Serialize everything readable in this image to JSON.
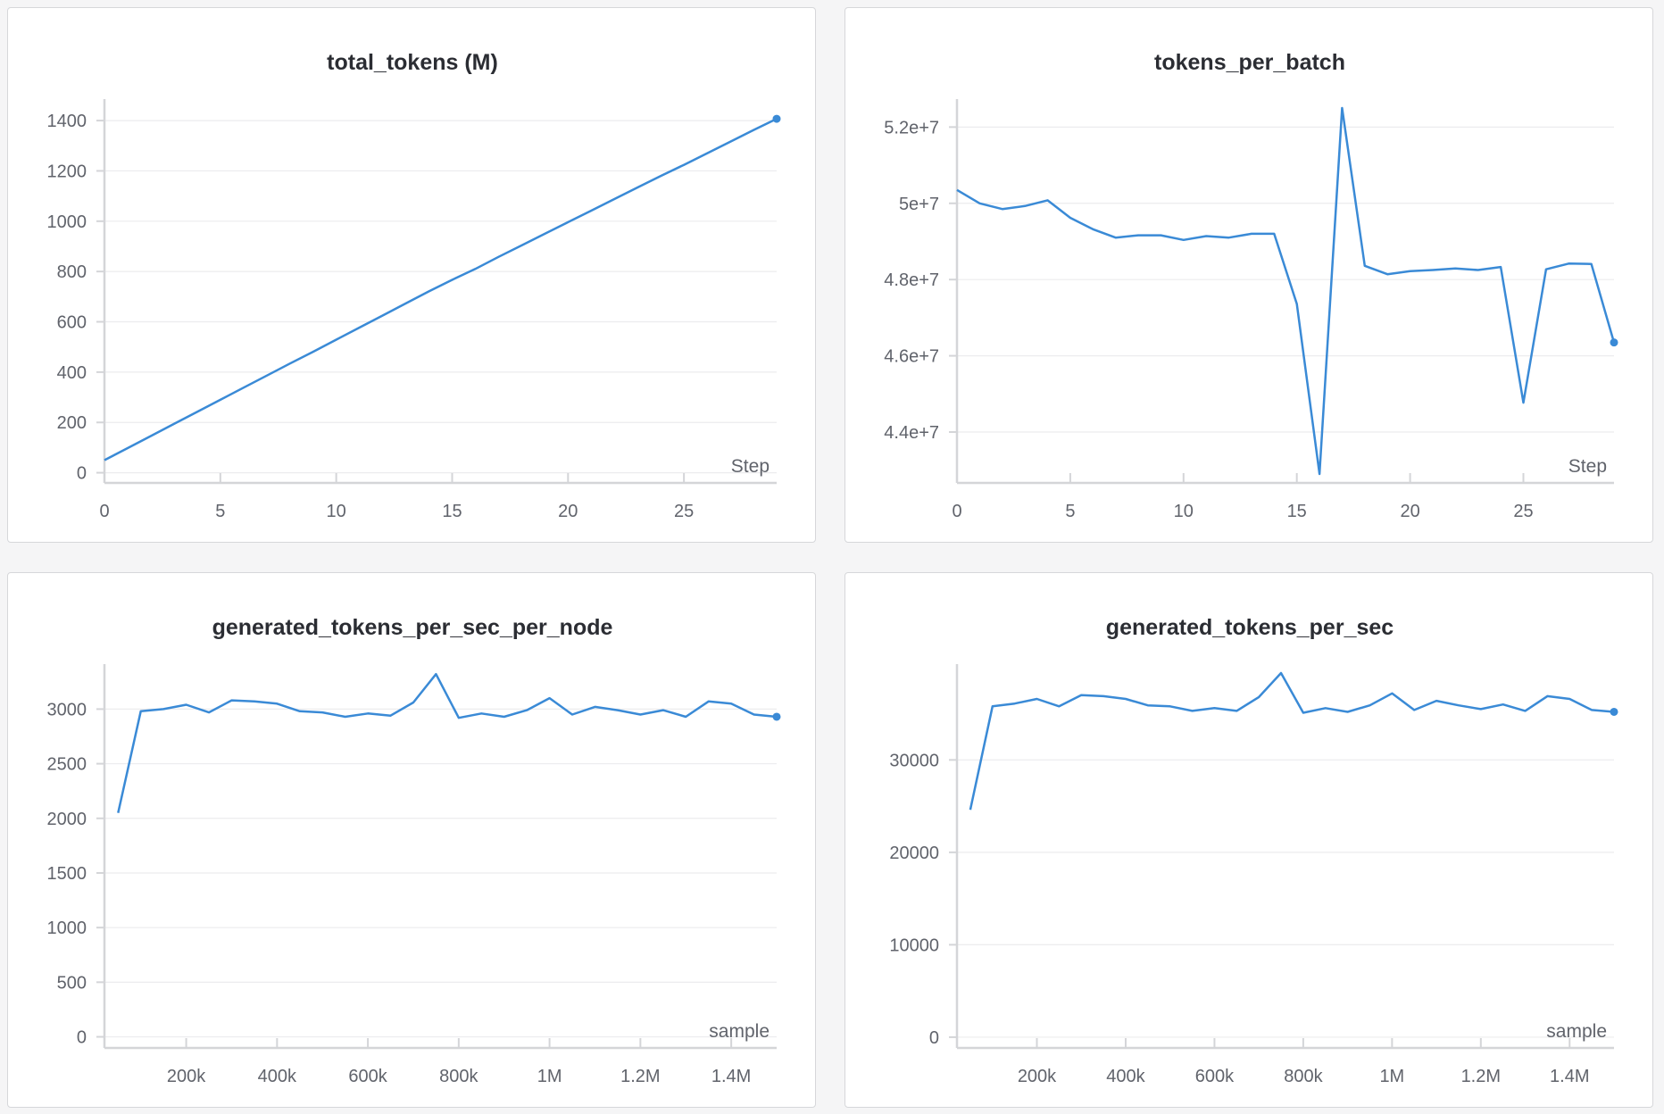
{
  "colors": {
    "line": "#3a8ad6",
    "grid": "#ececee",
    "axis": "#d4d5d8",
    "panel_border": "#d6d7da",
    "background": "#f5f5f6"
  },
  "chart_data": [
    {
      "type": "line",
      "title": "total_tokens (M)",
      "xlabel": "Step",
      "ylabel": "",
      "xlim": [
        0,
        29
      ],
      "ylim": [
        -5,
        1450
      ],
      "xticks": [
        0,
        5,
        10,
        15,
        20,
        25
      ],
      "xtick_labels": [
        "0",
        "5",
        "10",
        "15",
        "20",
        "25"
      ],
      "yticks": [
        0,
        200,
        400,
        600,
        800,
        1000,
        1200,
        1400
      ],
      "ytick_labels": [
        "0",
        "200",
        "400",
        "600",
        "800",
        "1000",
        "1200",
        "1400"
      ],
      "grid": true,
      "series": [
        {
          "x": [
            0,
            1,
            2,
            3,
            4,
            5,
            6,
            7,
            8,
            9,
            10,
            11,
            12,
            13,
            14,
            15,
            16,
            17,
            18,
            19,
            20,
            21,
            22,
            23,
            24,
            25,
            26,
            27,
            28,
            29
          ],
          "y": [
            50,
            98,
            146,
            194,
            242,
            290,
            338,
            386,
            434,
            481,
            529,
            577,
            625,
            673,
            721,
            767,
            810,
            858,
            904,
            950,
            996,
            1042,
            1088,
            1134,
            1180,
            1224,
            1270,
            1316,
            1362,
            1407
          ]
        }
      ]
    },
    {
      "type": "line",
      "title": "tokens_per_batch",
      "xlabel": "Step",
      "ylabel": "",
      "xlim": [
        0,
        29
      ],
      "ylim": [
        42900000,
        52500000
      ],
      "xticks": [
        0,
        5,
        10,
        15,
        20,
        25
      ],
      "xtick_labels": [
        "0",
        "5",
        "10",
        "15",
        "20",
        "25"
      ],
      "yticks": [
        44000000,
        46000000,
        48000000,
        50000000,
        52000000
      ],
      "ytick_labels": [
        "4.4e+7",
        "4.6e+7",
        "4.8e+7",
        "5e+7",
        "5.2e+7"
      ],
      "grid": true,
      "series": [
        {
          "x": [
            0,
            1,
            2,
            3,
            4,
            5,
            6,
            7,
            8,
            9,
            10,
            11,
            12,
            13,
            14,
            15,
            16,
            17,
            18,
            19,
            20,
            21,
            22,
            23,
            24,
            25,
            26,
            27,
            28,
            29
          ],
          "y": [
            50350000,
            50000000,
            49850000,
            49930000,
            50080000,
            49620000,
            49320000,
            49100000,
            49160000,
            49160000,
            49040000,
            49140000,
            49100000,
            49200000,
            49200000,
            47360000,
            42900000,
            52500000,
            48360000,
            48140000,
            48220000,
            48250000,
            48290000,
            48250000,
            48330000,
            44770000,
            48270000,
            48420000,
            48410000,
            46350000
          ]
        }
      ]
    },
    {
      "type": "line",
      "title": "generated_tokens_per_sec_per_node",
      "xlabel": "sample",
      "ylabel": "",
      "xlim": [
        20000,
        1500000
      ],
      "ylim": [
        -20,
        3330
      ],
      "xticks": [
        200000,
        400000,
        600000,
        800000,
        1000000,
        1200000,
        1400000
      ],
      "xtick_labels": [
        "200k",
        "400k",
        "600k",
        "800k",
        "1M",
        "1.2M",
        "1.4M"
      ],
      "yticks": [
        0,
        500,
        1000,
        1500,
        2000,
        2500,
        3000
      ],
      "ytick_labels": [
        "0",
        "500",
        "1000",
        "1500",
        "2000",
        "2500",
        "3000"
      ],
      "grid": true,
      "series": [
        {
          "x": [
            50000,
            100000,
            150000,
            200000,
            250000,
            300000,
            350000,
            400000,
            450000,
            500000,
            550000,
            600000,
            650000,
            700000,
            750000,
            800000,
            850000,
            900000,
            950000,
            1000000,
            1050000,
            1100000,
            1150000,
            1200000,
            1250000,
            1300000,
            1350000,
            1400000,
            1450000,
            1500000
          ],
          "y": [
            2050,
            2980,
            3000,
            3040,
            2970,
            3080,
            3070,
            3050,
            2980,
            2970,
            2930,
            2960,
            2940,
            3060,
            3320,
            2920,
            2960,
            2930,
            2990,
            3100,
            2950,
            3020,
            2990,
            2950,
            2990,
            2930,
            3070,
            3050,
            2950,
            2930
          ]
        }
      ]
    },
    {
      "type": "line",
      "title": "generated_tokens_per_sec",
      "xlabel": "sample",
      "ylabel": "",
      "xlim": [
        20000,
        1500000
      ],
      "ylim": [
        -200,
        39400
      ],
      "xticks": [
        200000,
        400000,
        600000,
        800000,
        1000000,
        1200000,
        1400000
      ],
      "xtick_labels": [
        "200k",
        "400k",
        "600k",
        "800k",
        "1M",
        "1.2M",
        "1.4M"
      ],
      "yticks": [
        0,
        10000,
        20000,
        30000
      ],
      "ytick_labels": [
        "0",
        "10000",
        "20000",
        "30000"
      ],
      "grid": true,
      "series": [
        {
          "x": [
            50000,
            100000,
            150000,
            200000,
            250000,
            300000,
            350000,
            400000,
            450000,
            500000,
            550000,
            600000,
            650000,
            700000,
            750000,
            800000,
            850000,
            900000,
            950000,
            1000000,
            1050000,
            1100000,
            1150000,
            1200000,
            1250000,
            1300000,
            1350000,
            1400000,
            1450000,
            1500000
          ],
          "y": [
            24600,
            35800,
            36100,
            36600,
            35800,
            37000,
            36900,
            36600,
            35900,
            35800,
            35300,
            35600,
            35300,
            36800,
            39400,
            35100,
            35600,
            35200,
            35900,
            37200,
            35400,
            36400,
            35900,
            35500,
            36000,
            35300,
            36900,
            36600,
            35400,
            35200
          ]
        }
      ]
    }
  ]
}
